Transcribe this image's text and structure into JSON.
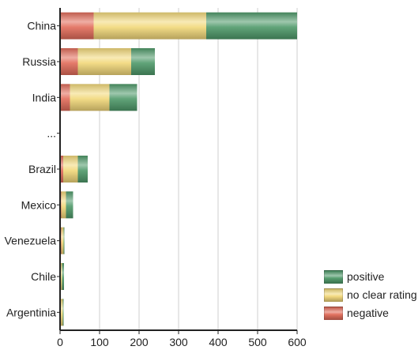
{
  "chart_data": {
    "type": "bar",
    "orientation": "horizontal",
    "stacked": true,
    "categories": [
      "China",
      "Russia",
      "India",
      "...",
      "Brazil",
      "Mexico",
      "Venezuela",
      "Chile",
      "Argentinia"
    ],
    "series": [
      {
        "name": "negative",
        "values": [
          85,
          45,
          25,
          null,
          8,
          3,
          3,
          2,
          2
        ],
        "color": "#e26c5a"
      },
      {
        "name": "no clear rating",
        "values": [
          285,
          135,
          100,
          null,
          37,
          12,
          6,
          3,
          5
        ],
        "color": "#f2d87a"
      },
      {
        "name": "positive",
        "values": [
          230,
          60,
          70,
          null,
          25,
          18,
          2,
          5,
          2
        ],
        "color": "#4f9a6a"
      }
    ],
    "xlim": [
      0,
      600
    ],
    "xticks": [
      0,
      100,
      200,
      300,
      400,
      500,
      600
    ],
    "grid": "vertical",
    "legend_position": "bottom-right",
    "legend_order": [
      "positive",
      "no clear rating",
      "negative"
    ],
    "title": "",
    "xlabel": "",
    "ylabel": ""
  }
}
